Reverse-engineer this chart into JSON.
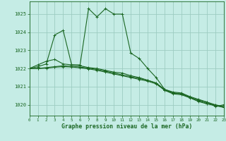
{
  "title": "Graphe pression niveau de la mer (hPa)",
  "bg_color": "#c5ece5",
  "grid_color": "#9dccc2",
  "line_color": "#1a6622",
  "xlim": [
    0,
    23
  ],
  "ylim": [
    1019.4,
    1025.7
  ],
  "yticks": [
    1020,
    1021,
    1022,
    1023,
    1024,
    1025
  ],
  "xticks": [
    0,
    1,
    2,
    3,
    4,
    5,
    6,
    7,
    8,
    9,
    10,
    11,
    12,
    13,
    14,
    15,
    16,
    17,
    18,
    19,
    20,
    21,
    22,
    23
  ],
  "line1_x": [
    0,
    1,
    2,
    3,
    4,
    5,
    6,
    7,
    8,
    9,
    10,
    11,
    12,
    13,
    14,
    15,
    16,
    17,
    18,
    19,
    20,
    21,
    22,
    23
  ],
  "line1_y": [
    1022.0,
    1022.2,
    1022.4,
    1022.5,
    1022.25,
    1022.2,
    1022.2,
    1025.3,
    1024.85,
    1025.3,
    1025.0,
    1025.0,
    1022.85,
    1022.55,
    1022.0,
    1021.5,
    1020.85,
    1020.7,
    1020.65,
    1020.45,
    1020.3,
    1020.15,
    1019.9,
    1020.0
  ],
  "line2_x": [
    0,
    1,
    2,
    3,
    4,
    5,
    6,
    7,
    8,
    9,
    10,
    11,
    12,
    13,
    14,
    15,
    16,
    17,
    18,
    19,
    20,
    21,
    22,
    23
  ],
  "line2_y": [
    1022.0,
    1022.1,
    1022.25,
    1023.85,
    1024.1,
    1022.2,
    1022.15,
    1022.05,
    1022.0,
    1021.9,
    1021.8,
    1021.75,
    1021.6,
    1021.5,
    1021.35,
    1021.2,
    1020.8,
    1020.65,
    1020.6,
    1020.4,
    1020.25,
    1020.15,
    1020.0,
    1019.9
  ],
  "line3_x": [
    0,
    1,
    2,
    3,
    4,
    5,
    6,
    7,
    8,
    9,
    10,
    11,
    12,
    13,
    14,
    15,
    16,
    17,
    18,
    19,
    20,
    21,
    22,
    23
  ],
  "line3_y": [
    1022.0,
    1022.0,
    1022.05,
    1022.1,
    1022.15,
    1022.12,
    1022.08,
    1022.02,
    1021.95,
    1021.85,
    1021.75,
    1021.65,
    1021.55,
    1021.45,
    1021.35,
    1021.2,
    1020.85,
    1020.65,
    1020.6,
    1020.42,
    1020.22,
    1020.08,
    1019.98,
    1019.88
  ],
  "line4_x": [
    0,
    1,
    2,
    3,
    4,
    5,
    6,
    7,
    8,
    9,
    10,
    11,
    12,
    13,
    14,
    15,
    16,
    17,
    18,
    19,
    20,
    21,
    22,
    23
  ],
  "line4_y": [
    1022.0,
    1022.0,
    1022.02,
    1022.07,
    1022.1,
    1022.08,
    1022.04,
    1021.98,
    1021.9,
    1021.8,
    1021.7,
    1021.6,
    1021.5,
    1021.4,
    1021.3,
    1021.15,
    1020.8,
    1020.6,
    1020.55,
    1020.38,
    1020.18,
    1020.05,
    1019.95,
    1019.85
  ]
}
